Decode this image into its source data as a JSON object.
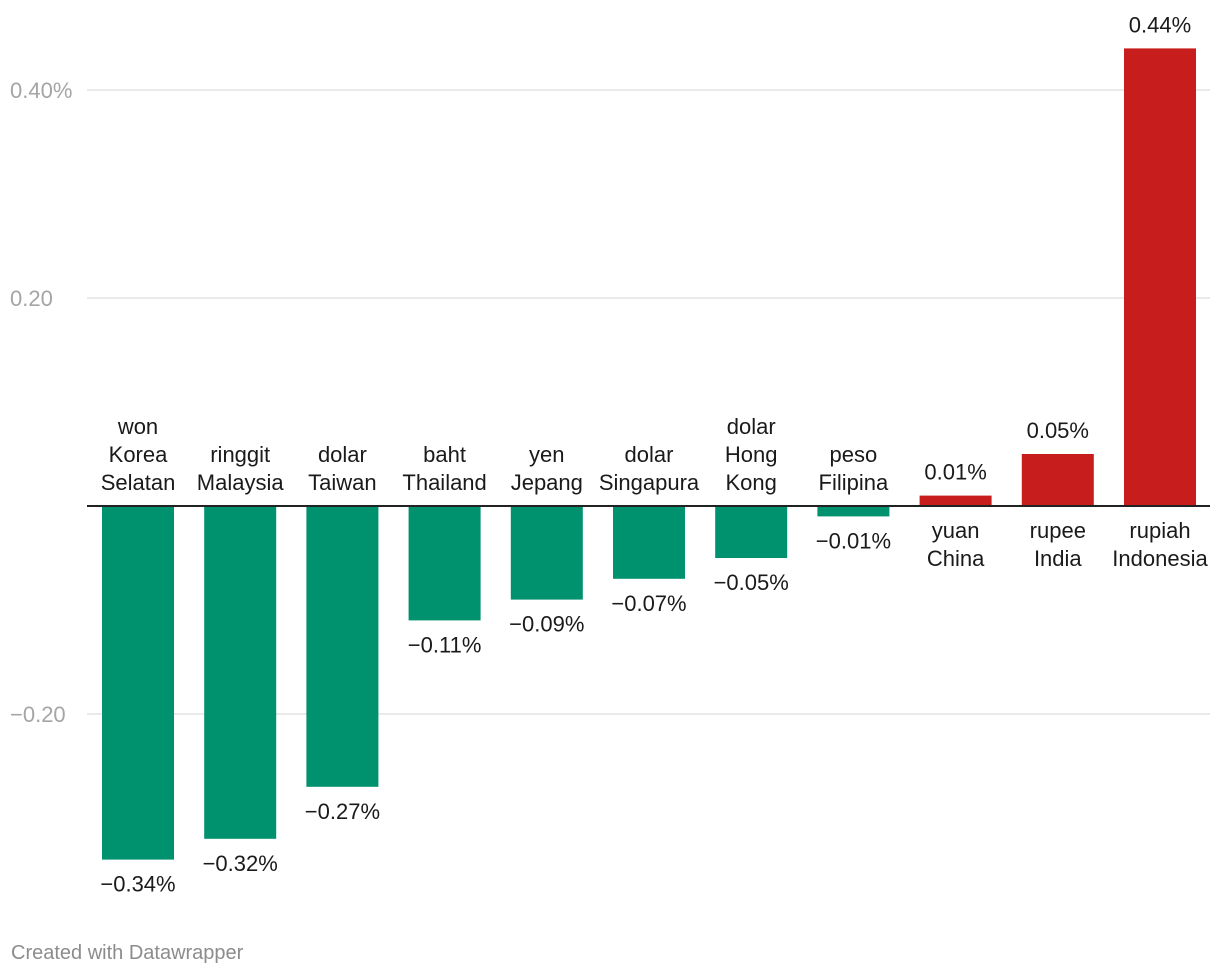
{
  "chart_data": {
    "type": "bar",
    "categories": [
      "won Korea Selatan",
      "ringgit Malaysia",
      "dolar Taiwan",
      "baht Thailand",
      "yen Jepang",
      "dolar Singapura",
      "dolar Hong Kong",
      "peso Filipina",
      "yuan China",
      "rupee India",
      "rupiah Indonesia"
    ],
    "category_lines": [
      [
        "won",
        "Korea",
        "Selatan"
      ],
      [
        "ringgit",
        "Malaysia"
      ],
      [
        "dolar",
        "Taiwan"
      ],
      [
        "baht",
        "Thailand"
      ],
      [
        "yen",
        "Jepang"
      ],
      [
        "dolar",
        "Singapura"
      ],
      [
        "dolar",
        "Hong",
        "Kong"
      ],
      [
        "peso",
        "Filipina"
      ],
      [
        "yuan",
        "China"
      ],
      [
        "rupee",
        "India"
      ],
      [
        "rupiah",
        "Indonesia"
      ]
    ],
    "values": [
      -0.34,
      -0.32,
      -0.27,
      -0.11,
      -0.09,
      -0.07,
      -0.05,
      -0.01,
      0.01,
      0.05,
      0.44
    ],
    "value_labels": [
      "−0.34%",
      "−0.32%",
      "−0.27%",
      "−0.11%",
      "−0.09%",
      "−0.07%",
      "−0.05%",
      "−0.01%",
      "0.01%",
      "0.05%",
      "0.44%"
    ],
    "ylim": [
      -0.36,
      0.46
    ],
    "y_ticks": [
      0.4,
      0.2,
      -0.2
    ],
    "y_tick_labels": [
      "0.40%",
      "0.20",
      "−0.20"
    ],
    "grid": true,
    "colors": {
      "negative": "#00916e",
      "positive": "#c71e1d",
      "gridline": "#e3e3e3",
      "baseline": "#222222"
    }
  },
  "footer": {
    "credit": "Created with Datawrapper"
  }
}
